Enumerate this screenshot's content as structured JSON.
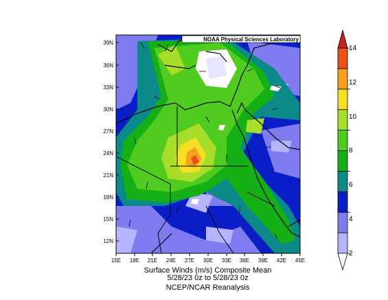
{
  "map": {
    "credit": "NOAA Physical Sciences Laboratory",
    "lat_labels": [
      "39N",
      "36N",
      "33N",
      "30N",
      "27N",
      "24N",
      "21N",
      "18N",
      "15N",
      "12N"
    ],
    "lon_labels": [
      "15E",
      "18E",
      "21E",
      "24E",
      "27E",
      "30E",
      "33E",
      "36E",
      "39E",
      "42E",
      "45E"
    ]
  },
  "caption": {
    "line1": "Surface Winds (m/s)    Composite Mean",
    "line2": "5/28/23 0z  to 5/28/23 0z",
    "line3": "NCEP/NCAR Reanalysis"
  },
  "colorbar": {
    "labels": [
      "14",
      "12",
      "10",
      "8",
      "6",
      "4",
      "2"
    ],
    "bands": [
      "#ffffff",
      "#b7b4ff",
      "#7e7cf0",
      "#0a1ec8",
      "#0c8a8a",
      "#15b015",
      "#50cc20",
      "#a8de2a",
      "#f5e024",
      "#f5a020",
      "#ec5018",
      "#c81e1e"
    ]
  },
  "legend_colors": {
    "white": "#ffffff",
    "lavender": "#b7b4ff",
    "periwinkle": "#7e7cf0",
    "blue": "#0a1ec8",
    "teal": "#0c8a8a",
    "green": "#15b015",
    "light_green": "#50cc20",
    "yellow_green": "#a8de2a",
    "yellow": "#f5e024",
    "orange": "#f5a020",
    "red_orange": "#ec5018",
    "red": "#c81e1e"
  }
}
